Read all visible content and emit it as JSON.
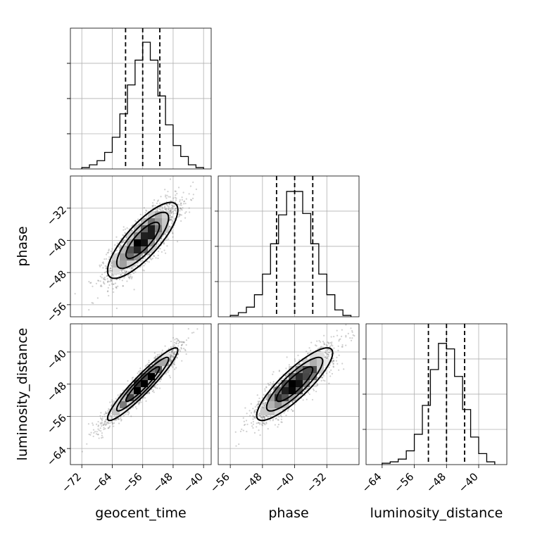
{
  "chart_data": {
    "type": "corner",
    "parameters": [
      "geocent_time",
      "phase",
      "luminosity_distance"
    ],
    "axes": {
      "geocent_time": {
        "label": "geocent_time",
        "range": [
          -75,
          -38
        ],
        "ticks": [
          -72,
          -64,
          -56,
          -48,
          -40
        ],
        "tick_labels": [
          "−72",
          "−64",
          "−56",
          "−48",
          "−40"
        ]
      },
      "phase": {
        "label": "phase",
        "range": [
          -59,
          -24
        ],
        "ticks": [
          -56,
          -48,
          -40,
          -32
        ],
        "tick_labels": [
          "−56",
          "−48",
          "−40",
          "−32"
        ]
      },
      "luminosity_distance": {
        "label": "luminosity_distance",
        "range": [
          -68,
          -33
        ],
        "ticks": [
          -64,
          -56,
          -48,
          -40
        ],
        "tick_labels": [
          "−64",
          "−56",
          "−48",
          "−40"
        ]
      }
    },
    "marginals": {
      "geocent_time": {
        "quantiles": [
          -60.5,
          -56,
          -51.5
        ],
        "bins": [
          [
            -72,
            -70,
            0.01
          ],
          [
            -70,
            -68,
            0.03
          ],
          [
            -68,
            -66,
            0.06
          ],
          [
            -66,
            -64,
            0.12
          ],
          [
            -64,
            -62,
            0.23
          ],
          [
            -62,
            -60,
            0.4
          ],
          [
            -60,
            -58,
            0.61
          ],
          [
            -58,
            -56,
            0.79
          ],
          [
            -56,
            -54,
            0.92
          ],
          [
            -54,
            -52,
            0.79
          ],
          [
            -52,
            -50,
            0.53
          ],
          [
            -50,
            -48,
            0.32
          ],
          [
            -48,
            -46,
            0.17
          ],
          [
            -46,
            -44,
            0.09
          ],
          [
            -44,
            -42,
            0.03
          ],
          [
            -42,
            -40,
            0.01
          ]
        ]
      },
      "phase": {
        "quantiles": [
          -44.5,
          -40,
          -35.5
        ],
        "bins": [
          [
            -56,
            -54,
            0.01
          ],
          [
            -54,
            -52,
            0.03
          ],
          [
            -52,
            -50,
            0.07
          ],
          [
            -50,
            -48,
            0.16
          ],
          [
            -48,
            -46,
            0.31
          ],
          [
            -46,
            -44,
            0.53
          ],
          [
            -44,
            -42,
            0.74
          ],
          [
            -42,
            -40,
            0.91
          ],
          [
            -40,
            -38,
            0.91
          ],
          [
            -38,
            -36,
            0.75
          ],
          [
            -36,
            -34,
            0.53
          ],
          [
            -34,
            -32,
            0.31
          ],
          [
            -32,
            -30,
            0.16
          ],
          [
            -30,
            -28,
            0.05
          ],
          [
            -28,
            -26,
            0.01
          ]
        ]
      },
      "luminosity_distance": {
        "quantiles": [
          -52.5,
          -48,
          -43.5
        ],
        "bins": [
          [
            -64,
            -62,
            0.01
          ],
          [
            -62,
            -60,
            0.02
          ],
          [
            -60,
            -58,
            0.04
          ],
          [
            -58,
            -56,
            0.1
          ],
          [
            -56,
            -54,
            0.22
          ],
          [
            -54,
            -52,
            0.43
          ],
          [
            -52,
            -50,
            0.69
          ],
          [
            -50,
            -48,
            0.88
          ],
          [
            -48,
            -46,
            0.84
          ],
          [
            -46,
            -44,
            0.64
          ],
          [
            -44,
            -42,
            0.4
          ],
          [
            -42,
            -40,
            0.2
          ],
          [
            -40,
            -38,
            0.08
          ],
          [
            -38,
            -36,
            0.02
          ]
        ]
      }
    },
    "joint": [
      {
        "x": "geocent_time",
        "y": "phase",
        "mean": [
          -56,
          -40
        ],
        "std": [
          4.4,
          4.5
        ],
        "rho": 0.8
      },
      {
        "x": "geocent_time",
        "y": "luminosity_distance",
        "mean": [
          -56,
          -48
        ],
        "std": [
          4.4,
          4.3
        ],
        "rho": 0.94
      },
      {
        "x": "phase",
        "y": "luminosity_distance",
        "mean": [
          -40,
          -48
        ],
        "std": [
          4.5,
          4.3
        ],
        "rho": 0.86
      }
    ],
    "quantile_style": "dashed",
    "grid": true,
    "legend": "none"
  }
}
